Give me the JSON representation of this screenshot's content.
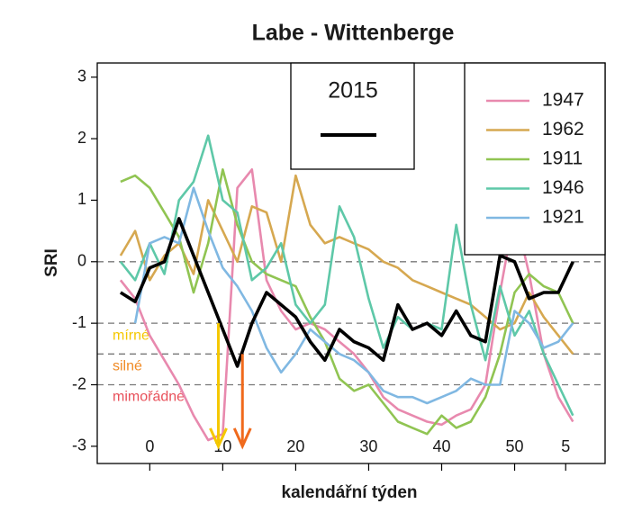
{
  "chart_data": {
    "type": "line",
    "title": "Labe - Wittenberge",
    "x_label": "kalendářní týden",
    "y_label": "SRI",
    "x": [
      -4,
      -2,
      0,
      2,
      4,
      6,
      8,
      10,
      12,
      14,
      16,
      18,
      20,
      22,
      24,
      26,
      28,
      30,
      32,
      34,
      36,
      38,
      40,
      42,
      44,
      46,
      48,
      50,
      52,
      54,
      56,
      58
    ],
    "xlim": [
      -7.2,
      62.4
    ],
    "xticks": [
      0,
      10,
      20,
      30,
      40,
      50,
      {
        "value": 57,
        "label": "5"
      }
    ],
    "ylim": [
      -3.28,
      3.23
    ],
    "yticks": [
      -3,
      -2,
      -1,
      0,
      1,
      2,
      3
    ],
    "hlines": [
      0,
      -1,
      -1.5,
      -2
    ],
    "threshold_labels": [
      {
        "value": -1,
        "label": "mírné",
        "color": "#f5c800"
      },
      {
        "value": -1.5,
        "label": "silné",
        "color": "#f08a24"
      },
      {
        "value": -2,
        "label": "mimořádné",
        "color": "#e8505a"
      }
    ],
    "arrows": [
      {
        "x": 9.4,
        "from": -1,
        "to": -3,
        "color": "#f5c800"
      },
      {
        "x": 12.7,
        "from": -1.5,
        "to": -3,
        "color": "#f06a1c"
      }
    ],
    "series": [
      {
        "name": "1947",
        "color": "#e889ae",
        "legend": "right",
        "values": [
          -0.3,
          -0.6,
          -1.2,
          -1.6,
          -2.0,
          -2.5,
          -2.9,
          -2.8,
          1.2,
          1.5,
          -0.3,
          -0.8,
          -1.1,
          -1.0,
          -1.1,
          -1.3,
          -1.5,
          -1.8,
          -2.2,
          -2.4,
          -2.5,
          -2.6,
          -2.65,
          -2.5,
          -2.4,
          -2.0,
          -0.5,
          0.8,
          -0.2,
          -1.5,
          -2.2,
          -2.6
        ]
      },
      {
        "name": "1962",
        "color": "#d6a850",
        "legend": "right",
        "values": [
          0.1,
          0.5,
          -0.3,
          0.1,
          0.3,
          -0.2,
          1.0,
          0.5,
          0.0,
          0.9,
          0.8,
          0.0,
          1.4,
          0.6,
          0.3,
          0.4,
          0.3,
          0.2,
          0.0,
          -0.1,
          -0.3,
          -0.4,
          -0.5,
          -0.6,
          -0.7,
          -0.9,
          -1.1,
          -1.0,
          -0.5,
          -0.9,
          -1.2,
          -1.5
        ]
      },
      {
        "name": "1911",
        "color": "#90c452",
        "legend": "right",
        "values": [
          1.3,
          1.4,
          1.2,
          0.8,
          0.4,
          -0.5,
          0.3,
          1.5,
          0.6,
          0.0,
          -0.2,
          -0.3,
          -0.4,
          -0.9,
          -1.3,
          -1.9,
          -2.1,
          -2.0,
          -2.3,
          -2.6,
          -2.7,
          -2.8,
          -2.5,
          -2.7,
          -2.6,
          -2.2,
          -1.5,
          -0.5,
          -0.2,
          -0.4,
          -0.5,
          -1.0
        ]
      },
      {
        "name": "1946",
        "color": "#5ec8a8",
        "legend": "right",
        "values": [
          0.0,
          -0.3,
          0.3,
          -0.2,
          1.0,
          1.3,
          2.05,
          1.0,
          0.8,
          -0.3,
          -0.1,
          0.3,
          -0.7,
          -1.0,
          -0.7,
          0.9,
          0.4,
          -0.6,
          -1.4,
          -0.9,
          -1.1,
          -1.0,
          -1.1,
          0.6,
          -0.7,
          -1.6,
          -0.4,
          -1.2,
          -0.8,
          -1.5,
          -2.0,
          -2.5
        ]
      },
      {
        "name": "1921",
        "color": "#80b8e2",
        "legend": "right",
        "values": [
          null,
          -1.0,
          0.3,
          0.4,
          0.3,
          1.2,
          0.5,
          -0.1,
          -0.4,
          -0.8,
          -1.4,
          -1.8,
          -1.5,
          -1.1,
          -1.3,
          -1.5,
          -1.6,
          -1.8,
          -2.1,
          -2.2,
          -2.2,
          -2.3,
          -2.2,
          -2.1,
          -1.9,
          -2.0,
          -2.0,
          -0.8,
          -1.0,
          -1.4,
          -1.3,
          -1.0
        ]
      },
      {
        "name": "2015",
        "color": "#000000",
        "legend": "top",
        "values": [
          -0.5,
          -0.65,
          -0.1,
          0.0,
          0.7,
          0.1,
          -0.5,
          -1.1,
          -1.7,
          -1.0,
          -0.5,
          -0.7,
          -0.9,
          -1.3,
          -1.6,
          -1.1,
          -1.3,
          -1.4,
          -1.6,
          -0.7,
          -1.1,
          -1.0,
          -1.2,
          -0.8,
          -1.2,
          -1.3,
          0.1,
          0.0,
          -0.6,
          -0.5,
          -0.5,
          0.0
        ]
      }
    ]
  }
}
